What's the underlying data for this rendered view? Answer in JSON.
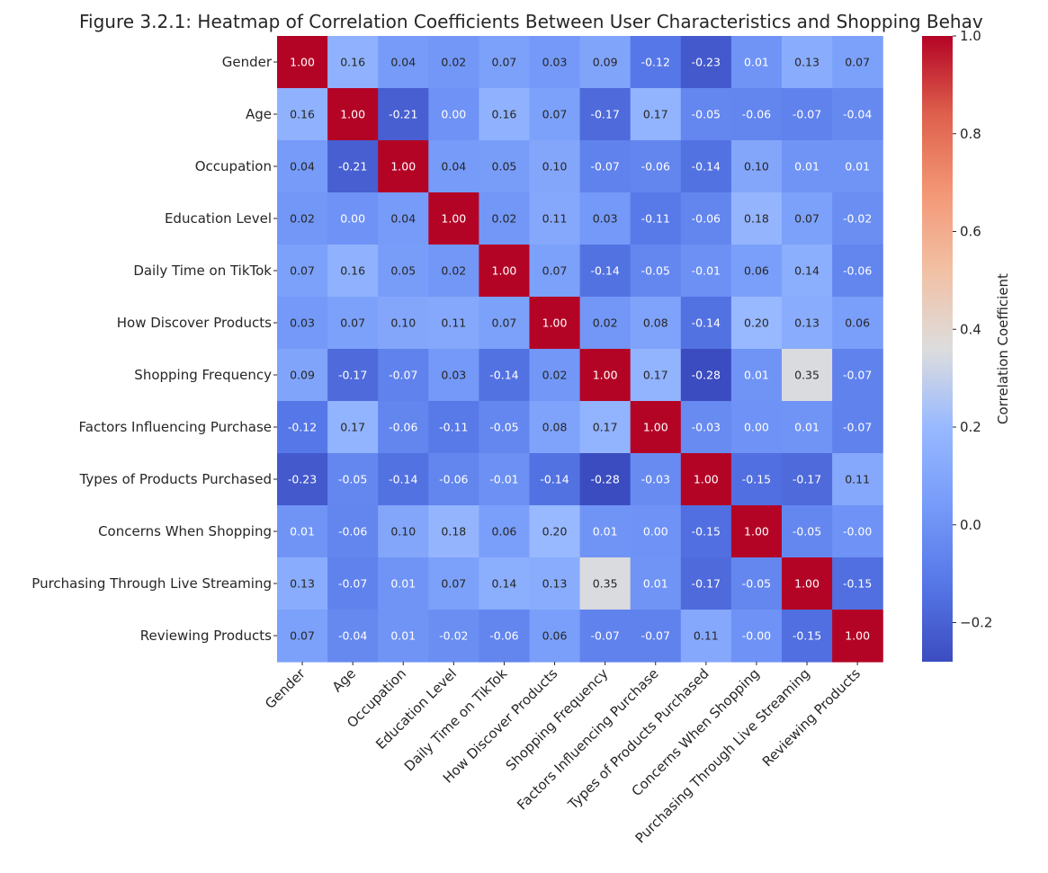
{
  "chart_data": {
    "type": "heatmap",
    "title": "Figure 3.2.1: Heatmap of Correlation Coefficients Between User Characteristics and Shopping Behav",
    "labels": [
      "Gender",
      "Age",
      "Occupation",
      "Education Level",
      "Daily Time on TikTok",
      "How Discover Products",
      "Shopping Frequency",
      "Factors Influencing Purchase",
      "Types of Products Purchased",
      "Concerns When Shopping",
      "Purchasing Through Live Streaming",
      "Reviewing Products"
    ],
    "values": [
      [
        1.0,
        0.16,
        0.04,
        0.02,
        0.07,
        0.03,
        0.09,
        -0.12,
        -0.23,
        0.01,
        0.13,
        0.07
      ],
      [
        0.16,
        1.0,
        -0.21,
        0.0,
        0.16,
        0.07,
        -0.17,
        0.17,
        -0.05,
        -0.06,
        -0.07,
        -0.04
      ],
      [
        0.04,
        -0.21,
        1.0,
        0.04,
        0.05,
        0.1,
        -0.07,
        -0.06,
        -0.14,
        0.1,
        0.01,
        0.01
      ],
      [
        0.02,
        0.0,
        0.04,
        1.0,
        0.02,
        0.11,
        0.03,
        -0.11,
        -0.06,
        0.18,
        0.07,
        -0.02
      ],
      [
        0.07,
        0.16,
        0.05,
        0.02,
        1.0,
        0.07,
        -0.14,
        -0.05,
        -0.01,
        0.06,
        0.14,
        -0.06
      ],
      [
        0.03,
        0.07,
        0.1,
        0.11,
        0.07,
        1.0,
        0.02,
        0.08,
        -0.14,
        0.2,
        0.13,
        0.06
      ],
      [
        0.09,
        -0.17,
        -0.07,
        0.03,
        -0.14,
        0.02,
        1.0,
        0.17,
        -0.28,
        0.01,
        0.35,
        -0.07
      ],
      [
        -0.12,
        0.17,
        -0.06,
        -0.11,
        -0.05,
        0.08,
        0.17,
        1.0,
        -0.03,
        0.0,
        0.01,
        -0.07
      ],
      [
        -0.23,
        -0.05,
        -0.14,
        -0.06,
        -0.01,
        -0.14,
        -0.28,
        -0.03,
        1.0,
        -0.15,
        -0.17,
        0.11
      ],
      [
        0.01,
        -0.06,
        0.1,
        0.18,
        0.06,
        0.2,
        0.01,
        0.0,
        -0.15,
        1.0,
        -0.05,
        -0.0
      ],
      [
        0.13,
        -0.07,
        0.01,
        0.07,
        0.14,
        0.13,
        0.35,
        0.01,
        -0.17,
        -0.05,
        1.0,
        -0.15
      ],
      [
        0.07,
        -0.04,
        0.01,
        -0.02,
        -0.06,
        0.06,
        -0.07,
        -0.07,
        0.11,
        -0.0,
        -0.15,
        1.0
      ]
    ],
    "vmin": -0.28,
    "vmax": 1.0,
    "colormap": "coolwarm",
    "colorbar": {
      "label": "Correlation Coefficient",
      "ticks": [
        -0.2,
        0.0,
        0.2,
        0.4,
        0.6,
        0.8,
        1.0
      ],
      "tick_labels": [
        "−0.2",
        "0.0",
        "0.2",
        "0.4",
        "0.6",
        "0.8",
        "1.0"
      ]
    }
  }
}
